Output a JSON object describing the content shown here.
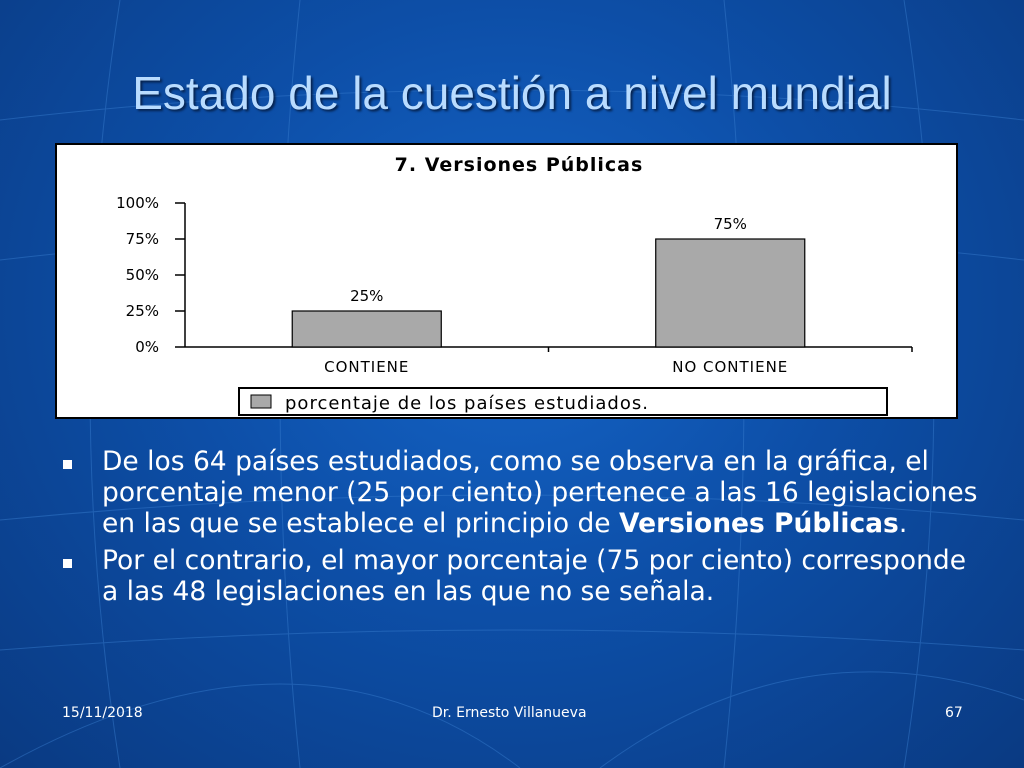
{
  "slide": {
    "title": "Estado de la cuestión a nivel mundial",
    "bullets": [
      {
        "text_before": "De los 64 países estudiados, como se observa en la gráfica, el porcentaje menor (25 por ciento) pertenece a las 16 legislaciones en las que se establece el principio de ",
        "bold": "Versiones Públicas",
        "text_after": "."
      },
      {
        "text_before": "Por el contrario, el mayor porcentaje (75 por ciento) corresponde a las 48 legislaciones en las que no se señala.",
        "bold": "",
        "text_after": ""
      }
    ],
    "footer": {
      "date": "15/11/2018",
      "author": "Dr. Ernesto Villanueva",
      "page": "67"
    }
  },
  "chart_data": {
    "type": "bar",
    "title": "7. Versiones Públicas",
    "categories": [
      "CONTIENE",
      "NO CONTIENE"
    ],
    "series": [
      {
        "name": "porcentaje de los países estudiados.",
        "values": [
          25,
          75
        ],
        "color": "#a9a9a9"
      }
    ],
    "data_labels": [
      "25%",
      "75%"
    ],
    "y_ticks": [
      "0%",
      "25%",
      "50%",
      "75%",
      "100%"
    ],
    "ylim": [
      0,
      100
    ],
    "legend_position": "bottom",
    "grid": false
  }
}
